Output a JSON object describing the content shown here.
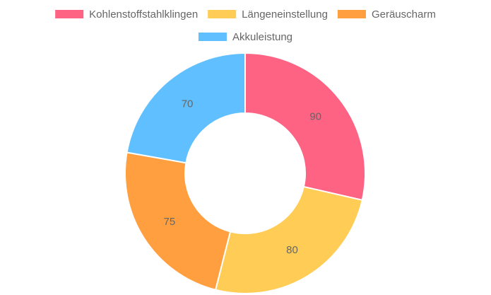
{
  "chart_data": {
    "type": "doughnut",
    "categories": [
      "Kohlenstoffstahlklingen",
      "Längeneinstellung",
      "Geräuscharm",
      "Akkuleistung"
    ],
    "values": [
      90,
      80,
      75,
      70
    ],
    "colors": [
      "#ff6384",
      "#ffcd56",
      "#ff9f40",
      "#5fbfff"
    ]
  }
}
